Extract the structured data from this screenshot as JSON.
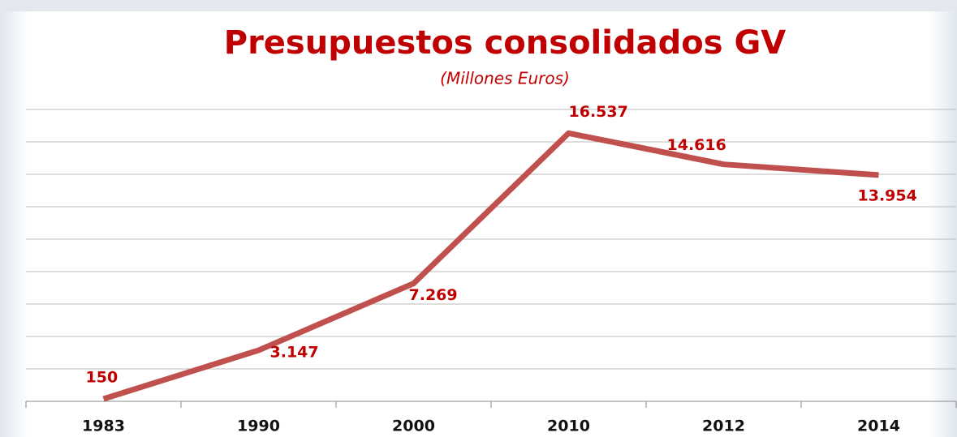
{
  "chart_data": {
    "type": "line",
    "title": "Presupuestos consolidados GV",
    "subtitle": "(Millones Euros)",
    "categories": [
      "1983",
      "1990",
      "2000",
      "2010",
      "2012",
      "2014"
    ],
    "series": [
      {
        "name": "Presupuestos",
        "color": "#c0504d",
        "values": [
          150,
          3147,
          7269,
          16537,
          14616,
          13954
        ],
        "value_labels": [
          "150",
          "3.147",
          "7.269",
          "16.537",
          "14.616",
          "13.954"
        ]
      }
    ],
    "ylim": [
      0,
      18000
    ],
    "yticks": [
      0,
      2000,
      4000,
      6000,
      8000,
      10000,
      12000,
      14000,
      16000,
      18000
    ],
    "grid": true
  }
}
